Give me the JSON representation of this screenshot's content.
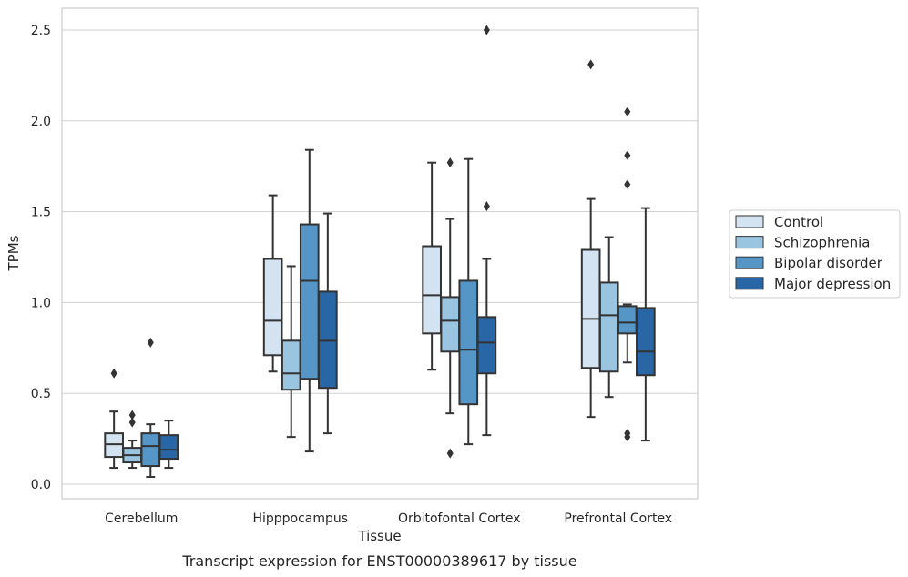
{
  "caption": "Transcript expression for ENST00000389617 by tissue",
  "chart_data": {
    "type": "boxplot",
    "xlabel": "Tissue",
    "ylabel": "TPMs",
    "ylim": [
      -0.08,
      2.62
    ],
    "yticks": [
      0.0,
      0.5,
      1.0,
      1.5,
      2.0,
      2.5
    ],
    "ytick_labels": [
      "0.0",
      "0.5",
      "1.0",
      "1.5",
      "2.0",
      "2.5"
    ],
    "grid": "horizontal",
    "legend_position": "right",
    "categories": [
      "Cerebellum",
      "Hipppocampus",
      "Orbitofontal Cortex",
      "Prefrontal Cortex"
    ],
    "series": [
      {
        "name": "Control",
        "color": "#d3e3f2",
        "boxes": [
          {
            "q1": 0.15,
            "median": 0.22,
            "q3": 0.28,
            "whislo": 0.09,
            "whishi": 0.4,
            "fliers": [
              0.61
            ]
          },
          {
            "q1": 0.71,
            "median": 0.9,
            "q3": 1.24,
            "whislo": 0.62,
            "whishi": 1.59,
            "fliers": []
          },
          {
            "q1": 0.83,
            "median": 1.04,
            "q3": 1.31,
            "whislo": 0.63,
            "whishi": 1.77,
            "fliers": []
          },
          {
            "q1": 0.64,
            "median": 0.91,
            "q3": 1.29,
            "whislo": 0.37,
            "whishi": 1.57,
            "fliers": [
              2.31
            ]
          }
        ]
      },
      {
        "name": "Schizophrenia",
        "color": "#9ac5e0",
        "boxes": [
          {
            "q1": 0.12,
            "median": 0.16,
            "q3": 0.2,
            "whislo": 0.09,
            "whishi": 0.24,
            "fliers": [
              0.34,
              0.38
            ]
          },
          {
            "q1": 0.52,
            "median": 0.61,
            "q3": 0.79,
            "whislo": 0.26,
            "whishi": 1.2,
            "fliers": []
          },
          {
            "q1": 0.73,
            "median": 0.9,
            "q3": 1.03,
            "whislo": 0.39,
            "whishi": 1.46,
            "fliers": [
              1.77,
              0.17
            ]
          },
          {
            "q1": 0.62,
            "median": 0.93,
            "q3": 1.11,
            "whislo": 0.48,
            "whishi": 1.36,
            "fliers": []
          }
        ]
      },
      {
        "name": "Bipolar disorder",
        "color": "#5596c6",
        "boxes": [
          {
            "q1": 0.1,
            "median": 0.21,
            "q3": 0.28,
            "whislo": 0.04,
            "whishi": 0.33,
            "fliers": [
              0.78
            ]
          },
          {
            "q1": 0.58,
            "median": 1.12,
            "q3": 1.43,
            "whislo": 0.18,
            "whishi": 1.84,
            "fliers": []
          },
          {
            "q1": 0.44,
            "median": 0.74,
            "q3": 1.12,
            "whislo": 0.22,
            "whishi": 1.79,
            "fliers": []
          },
          {
            "q1": 0.83,
            "median": 0.89,
            "q3": 0.98,
            "whislo": 0.67,
            "whishi": 0.99,
            "fliers": [
              2.05,
              1.81,
              1.65,
              0.28,
              0.26
            ]
          }
        ]
      },
      {
        "name": "Major depression",
        "color": "#2866a6",
        "boxes": [
          {
            "q1": 0.14,
            "median": 0.19,
            "q3": 0.27,
            "whislo": 0.09,
            "whishi": 0.35,
            "fliers": []
          },
          {
            "q1": 0.53,
            "median": 0.79,
            "q3": 1.06,
            "whislo": 0.28,
            "whishi": 1.49,
            "fliers": []
          },
          {
            "q1": 0.61,
            "median": 0.78,
            "q3": 0.92,
            "whislo": 0.27,
            "whishi": 1.24,
            "fliers": [
              2.5,
              1.53
            ]
          },
          {
            "q1": 0.6,
            "median": 0.73,
            "q3": 0.97,
            "whislo": 0.24,
            "whishi": 1.52,
            "fliers": []
          }
        ]
      }
    ]
  }
}
